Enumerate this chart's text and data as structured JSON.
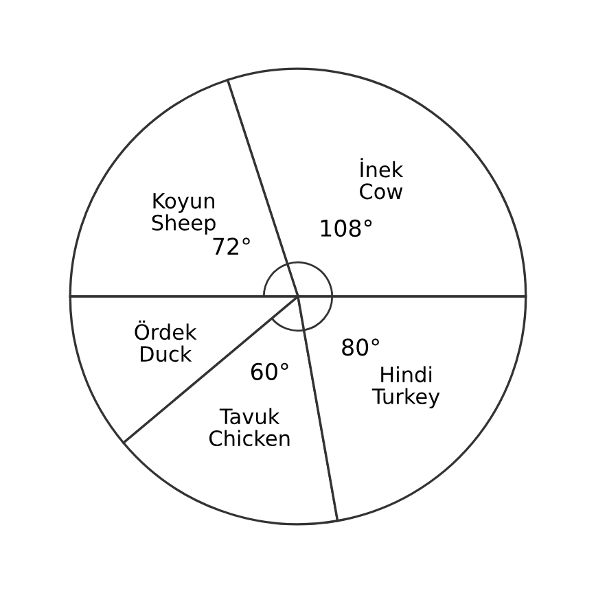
{
  "chart_data": {
    "type": "pie",
    "categories": [
      "İnek\nCow",
      "Koyun\nSheep",
      "Ördek\nDuck",
      "Tavuk\nChicken",
      "Hindi\nTurkey"
    ],
    "values": [
      108,
      72,
      40,
      60,
      80
    ],
    "value_labels": [
      "108°",
      "72°",
      null,
      "60°",
      "80°"
    ],
    "colors": [
      "#ffffff",
      "#ffffff",
      "#ffffff",
      "#ffffff",
      "#ffffff"
    ],
    "legend": false
  }
}
